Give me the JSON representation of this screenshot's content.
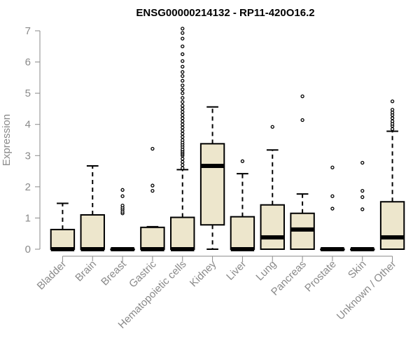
{
  "chart_data": {
    "type": "boxplot",
    "title": "ENSG00000214132 - RP11-420O16.2",
    "ylabel": "Expression",
    "xlabel": "",
    "ylim": [
      0,
      7
    ],
    "yticks": [
      0,
      1,
      2,
      3,
      4,
      5,
      6,
      7
    ],
    "box_fill": "#ede6cc",
    "categories": [
      "Bladder",
      "Brain",
      "Breast",
      "Gastric",
      "Hematopoietic cells",
      "Kidney",
      "Liver",
      "Lung",
      "Pancreas",
      "Prostate",
      "Skin",
      "Unknown / Other"
    ],
    "boxes": [
      {
        "q1": 0,
        "median": 0,
        "q3": 0.63,
        "whisker_low": 0,
        "whisker_high": 1.47,
        "outliers": []
      },
      {
        "q1": 0,
        "median": 0,
        "q3": 1.1,
        "whisker_low": 0,
        "whisker_high": 2.67,
        "outliers": []
      },
      {
        "q1": 0,
        "median": 0,
        "q3": 0,
        "whisker_low": 0,
        "whisker_high": 0,
        "outliers": [
          1.15,
          1.2,
          1.27,
          1.33,
          1.4,
          1.7,
          1.9
        ]
      },
      {
        "q1": 0,
        "median": 0,
        "q3": 0.7,
        "whisker_low": 0,
        "whisker_high": 0.72,
        "outliers": [
          1.87,
          2.04,
          3.22
        ]
      },
      {
        "q1": 0,
        "median": 0,
        "q3": 1.02,
        "whisker_low": 0,
        "whisker_high": 2.55,
        "outliers": [
          2.6,
          2.7,
          2.8,
          2.9,
          3.0,
          3.05,
          3.1,
          3.15,
          3.2,
          3.28,
          3.35,
          3.42,
          3.5,
          3.6,
          3.7,
          3.8,
          3.9,
          4.0,
          4.1,
          4.2,
          4.3,
          4.4,
          4.5,
          4.6,
          4.72,
          4.85,
          5.0,
          5.12,
          5.25,
          5.4,
          5.55,
          5.68,
          5.85,
          6.03,
          6.25,
          6.5,
          6.75,
          6.93,
          7.07
        ]
      },
      {
        "q1": 0.78,
        "median": 2.67,
        "q3": 3.38,
        "whisker_low": 0,
        "whisker_high": 4.56,
        "outliers": []
      },
      {
        "q1": 0,
        "median": 0,
        "q3": 1.04,
        "whisker_low": 0,
        "whisker_high": 2.42,
        "outliers": [
          2.82
        ]
      },
      {
        "q1": 0,
        "median": 0.38,
        "q3": 1.42,
        "whisker_low": 0,
        "whisker_high": 3.18,
        "outliers": [
          3.92
        ]
      },
      {
        "q1": 0,
        "median": 0.63,
        "q3": 1.15,
        "whisker_low": 0,
        "whisker_high": 1.77,
        "outliers": [
          4.14,
          4.9
        ]
      },
      {
        "q1": 0,
        "median": 0,
        "q3": 0,
        "whisker_low": 0,
        "whisker_high": 0,
        "outliers": [
          1.3,
          1.7,
          2.62
        ]
      },
      {
        "q1": 0,
        "median": 0,
        "q3": 0,
        "whisker_low": 0,
        "whisker_high": 0,
        "outliers": [
          1.28,
          1.67,
          1.87,
          2.77
        ]
      },
      {
        "q1": 0,
        "median": 0.38,
        "q3": 1.52,
        "whisker_low": 0,
        "whisker_high": 3.78,
        "outliers": [
          3.85,
          3.95,
          4.02,
          4.1,
          4.2,
          4.3,
          4.38,
          4.47,
          4.74
        ]
      }
    ]
  }
}
